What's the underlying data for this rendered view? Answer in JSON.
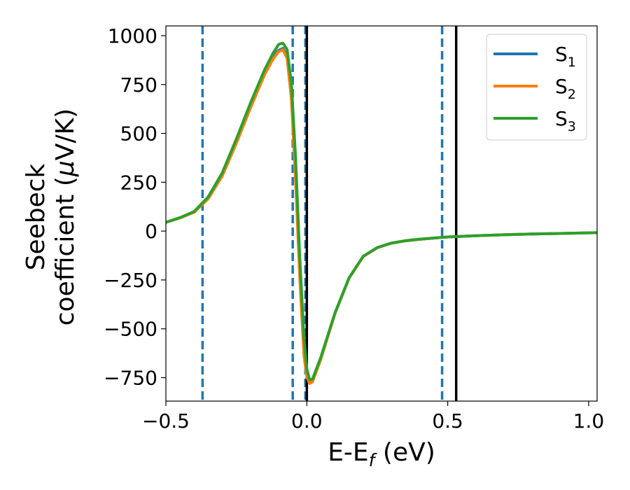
{
  "chart_data": {
    "type": "line",
    "xlabel": "E-E",
    "xlabel_sub": "f",
    "xlabel_unit": " (eV)",
    "ylabel_line1": "Seebeck",
    "ylabel_line2_pre": "coefficient  (",
    "ylabel_line2_mu": "μ",
    "ylabel_line2_post": "V/K)",
    "xlim": [
      -0.5,
      1.03
    ],
    "ylim": [
      -870,
      1050
    ],
    "xticks": [
      -0.5,
      0.0,
      0.5,
      1.0
    ],
    "xtick_labels": [
      "−0.5",
      "0.0",
      "0.5",
      "1.0"
    ],
    "yticks": [
      -750,
      -500,
      -250,
      0,
      250,
      500,
      750,
      1000
    ],
    "ytick_labels": [
      "−750",
      "−500",
      "−250",
      "0",
      "250",
      "500",
      "750",
      "1000"
    ],
    "grid": false,
    "legend_position": "top-right",
    "series": [
      {
        "name": "S",
        "name_sub": "1",
        "color": "#1f77b4",
        "x": [
          -0.5,
          -0.45,
          -0.4,
          -0.35,
          -0.3,
          -0.25,
          -0.2,
          -0.15,
          -0.12,
          -0.1,
          -0.085,
          -0.07,
          -0.055,
          -0.04,
          -0.025,
          -0.01,
          0.0,
          0.01,
          0.02,
          0.05,
          0.1,
          0.15,
          0.2,
          0.25,
          0.3,
          0.35,
          0.4,
          0.5,
          0.6,
          0.7,
          0.8,
          0.9,
          1.03
        ],
        "y": [
          45,
          68,
          98,
          170,
          290,
          460,
          640,
          810,
          890,
          925,
          935,
          895,
          700,
          300,
          -200,
          -600,
          -730,
          -770,
          -765,
          -650,
          -420,
          -240,
          -130,
          -85,
          -62,
          -50,
          -42,
          -30,
          -24,
          -19,
          -15,
          -12,
          -8
        ]
      },
      {
        "name": "S",
        "name_sub": "2",
        "color": "#ff7f0e",
        "x": [
          -0.5,
          -0.45,
          -0.4,
          -0.35,
          -0.3,
          -0.25,
          -0.2,
          -0.15,
          -0.12,
          -0.1,
          -0.085,
          -0.07,
          -0.055,
          -0.04,
          -0.025,
          -0.01,
          0.0,
          0.01,
          0.02,
          0.05,
          0.1,
          0.15,
          0.2,
          0.25,
          0.3,
          0.35,
          0.4,
          0.5,
          0.6,
          0.7,
          0.8,
          0.9,
          1.03
        ],
        "y": [
          45,
          67,
          96,
          165,
          282,
          450,
          630,
          800,
          880,
          918,
          928,
          885,
          680,
          260,
          -240,
          -640,
          -745,
          -780,
          -772,
          -655,
          -422,
          -241,
          -131,
          -85,
          -62,
          -50,
          -42,
          -30,
          -24,
          -19,
          -15,
          -12,
          -8
        ]
      },
      {
        "name": "S",
        "name_sub": "3",
        "color": "#2ca02c",
        "x": [
          -0.5,
          -0.45,
          -0.4,
          -0.35,
          -0.3,
          -0.25,
          -0.2,
          -0.15,
          -0.12,
          -0.1,
          -0.085,
          -0.07,
          -0.055,
          -0.04,
          -0.025,
          -0.01,
          0.0,
          0.01,
          0.02,
          0.05,
          0.1,
          0.15,
          0.2,
          0.25,
          0.3,
          0.35,
          0.4,
          0.5,
          0.6,
          0.7,
          0.8,
          0.9,
          1.03
        ],
        "y": [
          45,
          69,
          100,
          175,
          298,
          472,
          655,
          825,
          910,
          955,
          962,
          930,
          760,
          380,
          -130,
          -550,
          -705,
          -760,
          -758,
          -645,
          -418,
          -239,
          -129,
          -84,
          -61,
          -49,
          -41,
          -30,
          -24,
          -19,
          -15,
          -12,
          -8
        ]
      }
    ],
    "vlines": [
      {
        "x": -0.37,
        "style": "dashed",
        "color": "#1f77b4"
      },
      {
        "x": -0.05,
        "style": "dashed",
        "color": "#1f77b4"
      },
      {
        "x": -0.005,
        "style": "dashed",
        "color": "#1f77b4"
      },
      {
        "x": 0.48,
        "style": "dashed",
        "color": "#1f77b4"
      },
      {
        "x": 0.0,
        "style": "solid",
        "color": "#000000"
      },
      {
        "x": 0.53,
        "style": "solid",
        "color": "#000000"
      }
    ]
  }
}
